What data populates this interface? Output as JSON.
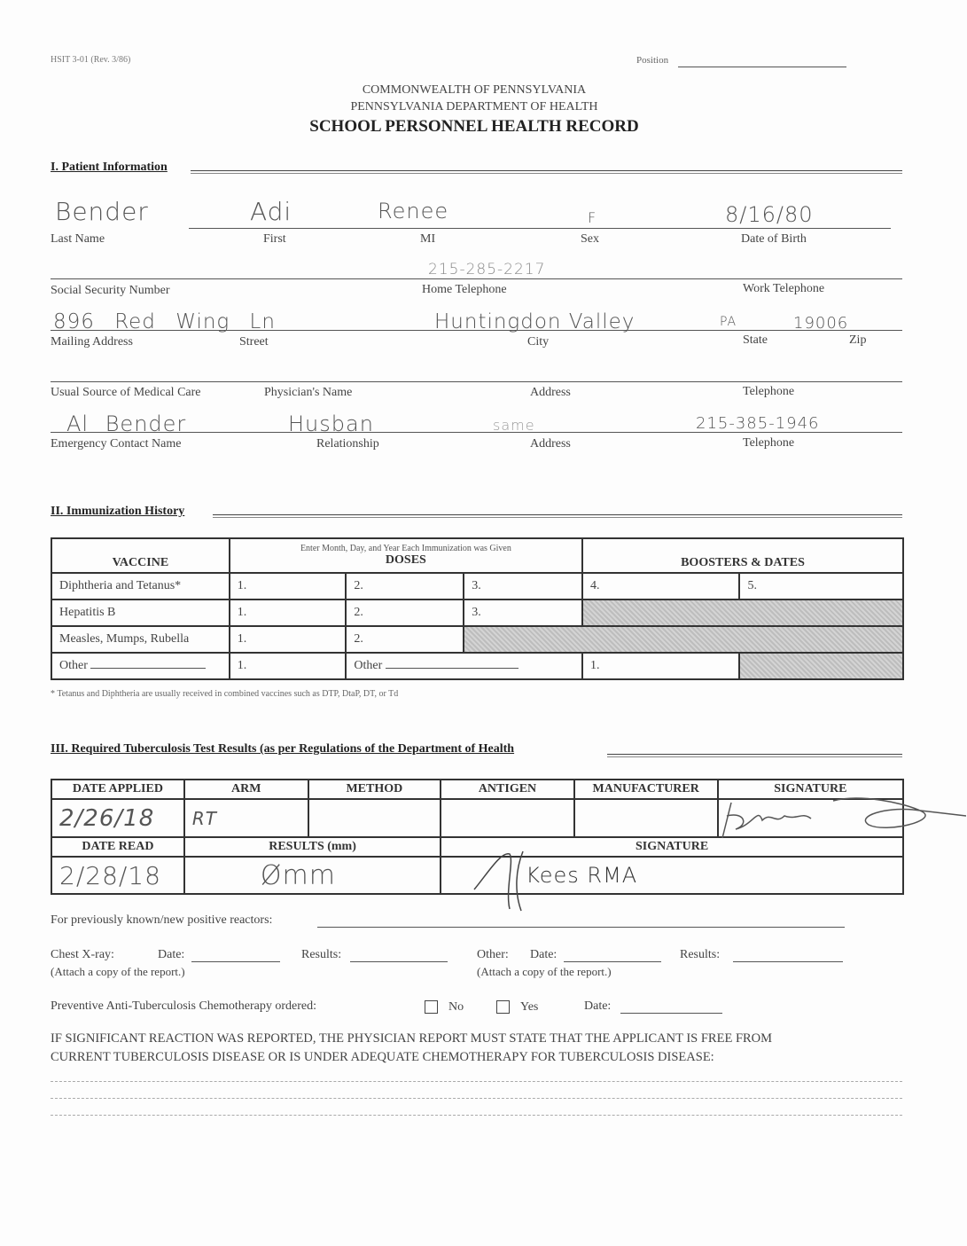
{
  "header": {
    "form_number": "HSIT 3-01 (Rev. 3/86)",
    "position_label": "Position",
    "line1": "COMMONWEALTH OF PENNSYLVANIA",
    "line2": "PENNSYLVANIA DEPARTMENT OF HEALTH",
    "title": "SCHOOL PERSONNEL HEALTH RECORD"
  },
  "patient": {
    "section_title": "I. Patient Information",
    "labels": {
      "last_name": "Last Name",
      "first": "First",
      "mi": "MI",
      "sex": "Sex",
      "dob": "Date of Birth",
      "ssn": "Social Security Number",
      "home_phone": "Home Telephone",
      "work_phone": "Work Telephone",
      "mailing_address": "Mailing Address",
      "street": "Street",
      "city": "City",
      "state": "State",
      "zip": "Zip",
      "usual_source": "Usual Source of Medical Care",
      "physician": "Physician's Name",
      "address": "Address",
      "telephone": "Telephone",
      "emergency": "Emergency Contact   Name",
      "relationship": "Relationship"
    },
    "values": {
      "last_name": "Bender",
      "first": "Adi",
      "mi": "Renee",
      "sex": "F",
      "dob": "8/16/80",
      "home_phone": "215-285-2217",
      "street": "896 Red Wing Ln",
      "city": "Huntingdon Valley",
      "state": "PA",
      "zip": "19006",
      "emergency_name": "Al Bender",
      "relationship": "Husban",
      "emergency_address": "same",
      "emergency_phone": "215-385-1946"
    }
  },
  "immunization": {
    "section_title": "II. Immunization History",
    "header": {
      "vaccine": "VACCINE",
      "doses_note": "Enter Month, Day, and Year Each Immunization was Given",
      "doses": "DOSES",
      "boosters": "BOOSTERS & DATES"
    },
    "rows": [
      {
        "vaccine": "Diphtheria and Tetanus*",
        "cells": [
          "1.",
          "2.",
          "3.",
          "4.",
          "5."
        ]
      },
      {
        "vaccine": "Hepatitis B",
        "cells": [
          "1.",
          "2.",
          "3."
        ]
      },
      {
        "vaccine": "Measles, Mumps, Rubella",
        "cells": [
          "1.",
          "2."
        ]
      },
      {
        "vaccine": "Other",
        "cells": [
          "1.",
          "Other",
          "1."
        ]
      }
    ],
    "footnote": "* Tetanus and Diphtheria are usually received in combined vaccines such as DTP, DtaP, DT, or Td"
  },
  "tb": {
    "section_title": "III. Required Tuberculosis Test Results (as per Regulations of the Department of Health",
    "headers1": [
      "DATE APPLIED",
      "ARM",
      "METHOD",
      "ANTIGEN",
      "MANUFACTURER",
      "SIGNATURE"
    ],
    "values1": {
      "date_applied": "2/26/18",
      "arm": "RT"
    },
    "headers2": [
      "DATE READ",
      "RESULTS (mm)",
      "SIGNATURE"
    ],
    "values2": {
      "date_read": "2/28/18",
      "results": "Ømm",
      "signature": "Kees RMA"
    },
    "positive_reactors": "For previously known/new positive reactors:",
    "chest_xray": "Chest X-ray:",
    "date": "Date:",
    "results": "Results:",
    "other": "Other:",
    "attach": "(Attach a copy of the report.)",
    "chemo": "Preventive Anti-Tuberculosis Chemotherapy ordered:",
    "no": "No",
    "yes": "Yes",
    "notice1": "IF SIGNIFICANT REACTION WAS REPORTED, THE PHYSICIAN REPORT MUST STATE THAT THE APPLICANT IS FREE FROM",
    "notice2": "CURRENT TUBERCULOSIS DISEASE OR IS UNDER ADEQUATE CHEMOTHERAPY FOR TUBERCULOSIS DISEASE:"
  }
}
